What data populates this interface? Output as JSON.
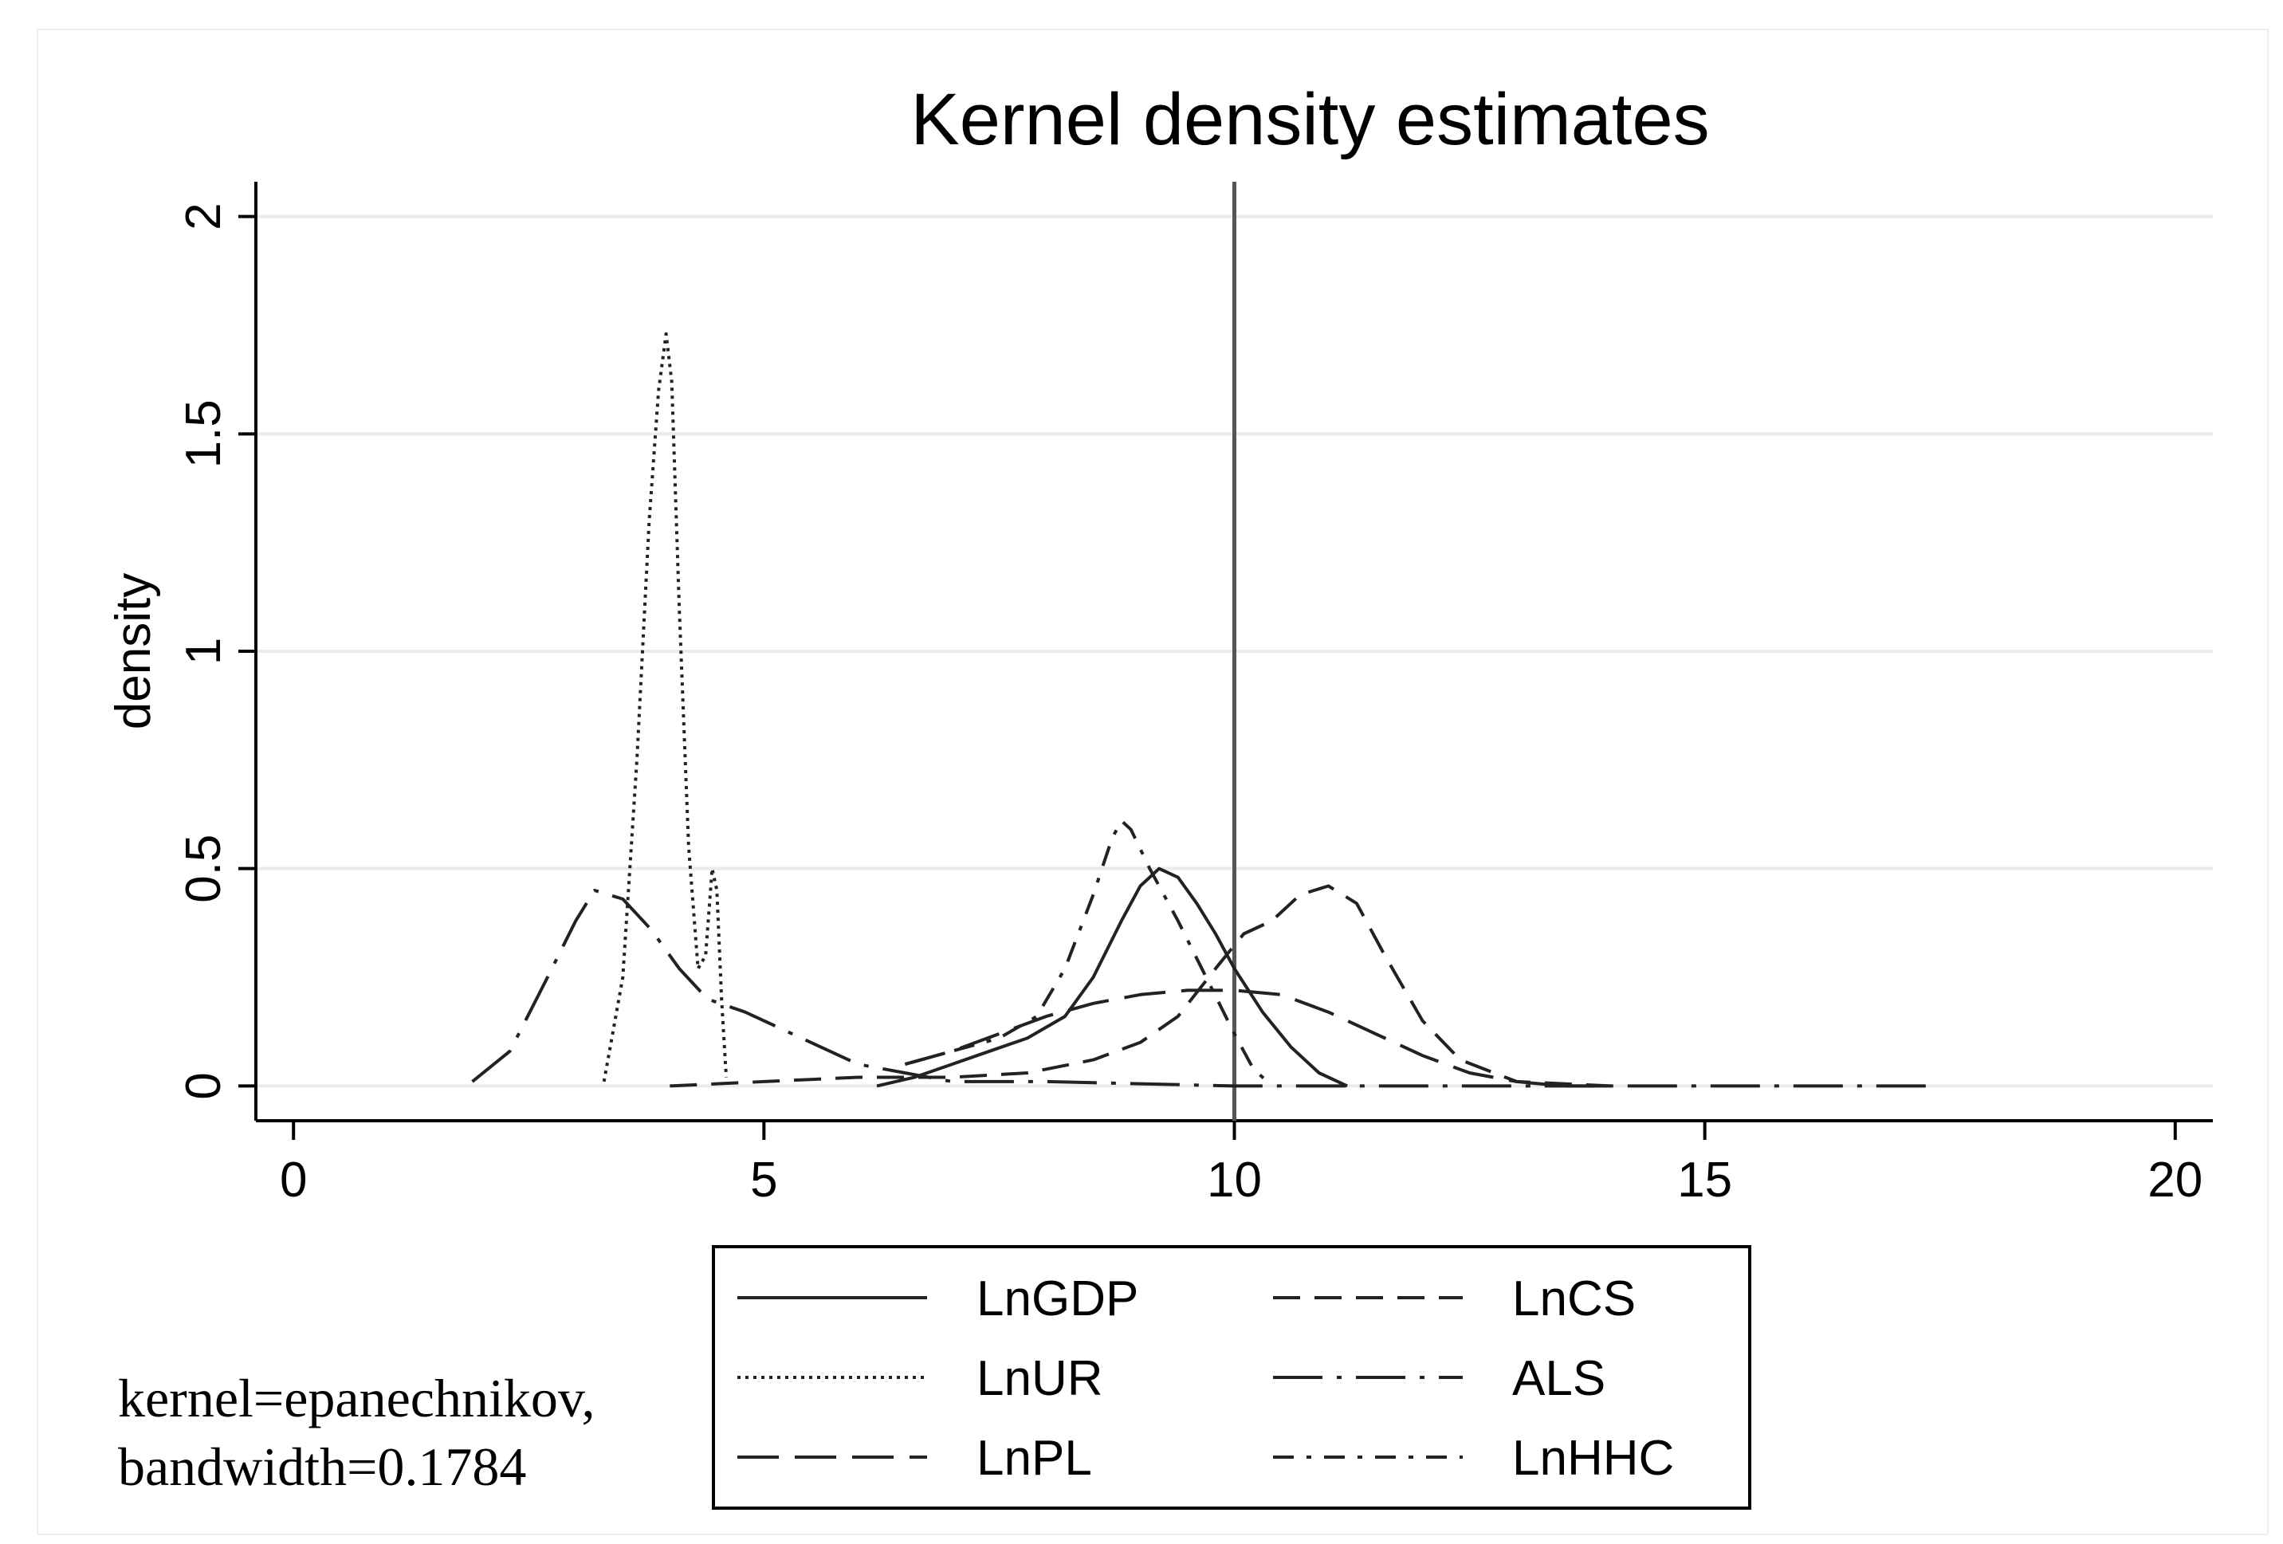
{
  "chart_data": {
    "type": "line",
    "title": "Kernel density estimates",
    "xlabel": "",
    "ylabel": "density",
    "xlim": [
      -0.4,
      20.4
    ],
    "ylim": [
      -0.08,
      2.08
    ],
    "xticks": [
      0,
      5,
      10,
      15,
      20
    ],
    "xtick_labels": [
      "0",
      "5",
      "10",
      "15",
      "20"
    ],
    "yticks": [
      0,
      0.5,
      1,
      1.5,
      2
    ],
    "ytick_labels": [
      "0",
      "0.5",
      "1",
      "1.5",
      "2"
    ],
    "grid": true,
    "reference_line_x": 10,
    "legend_position": "bottom",
    "series": [
      {
        "name": "LnGDP",
        "dash": "solid",
        "x": [
          6.2,
          6.6,
          7.0,
          7.4,
          7.8,
          8.2,
          8.5,
          8.8,
          9.0,
          9.2,
          9.4,
          9.6,
          9.8,
          10.0,
          10.3,
          10.6,
          10.9,
          11.2
        ],
        "y": [
          0.0,
          0.02,
          0.05,
          0.08,
          0.11,
          0.16,
          0.25,
          0.38,
          0.46,
          0.5,
          0.48,
          0.42,
          0.35,
          0.27,
          0.17,
          0.09,
          0.03,
          0.0
        ]
      },
      {
        "name": "LnUR",
        "dash": "dotted",
        "x": [
          3.3,
          3.5,
          3.65,
          3.78,
          3.88,
          3.96,
          4.02,
          4.1,
          4.2,
          4.3,
          4.38,
          4.45,
          4.5,
          4.55,
          4.6
        ],
        "y": [
          0.01,
          0.25,
          0.75,
          1.3,
          1.6,
          1.73,
          1.62,
          1.1,
          0.55,
          0.27,
          0.3,
          0.5,
          0.45,
          0.2,
          0.02
        ]
      },
      {
        "name": "LnPL",
        "dash": "longdash",
        "x": [
          6.5,
          7.0,
          7.5,
          8.0,
          8.5,
          9.0,
          9.5,
          10.0,
          10.5,
          11.0,
          11.5,
          12.0,
          12.5,
          13.0,
          13.5,
          14.0
        ],
        "y": [
          0.05,
          0.08,
          0.12,
          0.16,
          0.19,
          0.21,
          0.22,
          0.22,
          0.21,
          0.17,
          0.12,
          0.07,
          0.03,
          0.01,
          0.0,
          0.0
        ]
      },
      {
        "name": "LnCS",
        "dash": "dashed",
        "x": [
          4.0,
          5.0,
          6.0,
          7.0,
          7.8,
          8.5,
          9.0,
          9.4,
          9.8,
          10.1,
          10.4,
          10.7,
          11.0,
          11.3,
          11.6,
          12.0,
          12.4,
          13.0,
          14.0
        ],
        "y": [
          0.0,
          0.01,
          0.02,
          0.02,
          0.03,
          0.06,
          0.1,
          0.16,
          0.27,
          0.35,
          0.38,
          0.44,
          0.46,
          0.42,
          0.3,
          0.15,
          0.06,
          0.01,
          0.0
        ]
      },
      {
        "name": "ALS",
        "dash": "longdashdot",
        "x": [
          1.9,
          2.3,
          2.7,
          3.0,
          3.2,
          3.5,
          3.8,
          4.1,
          4.4,
          4.8,
          5.2,
          5.6,
          6.0,
          6.5,
          7.0,
          8.0,
          10.0,
          12.0,
          14.0,
          16.0,
          17.5
        ],
        "y": [
          0.01,
          0.08,
          0.25,
          0.38,
          0.45,
          0.43,
          0.36,
          0.27,
          0.2,
          0.17,
          0.13,
          0.09,
          0.05,
          0.03,
          0.01,
          0.01,
          0.0,
          0.0,
          0.0,
          0.0,
          0.0
        ]
      },
      {
        "name": "LnHHC",
        "dash": "dashdot",
        "x": [
          6.5,
          7.0,
          7.5,
          7.9,
          8.2,
          8.5,
          8.7,
          8.8,
          8.9,
          9.1,
          9.4,
          9.7,
          10.0,
          10.2,
          10.4
        ],
        "y": [
          0.05,
          0.08,
          0.11,
          0.16,
          0.27,
          0.44,
          0.57,
          0.61,
          0.59,
          0.5,
          0.38,
          0.25,
          0.12,
          0.04,
          0.0
        ]
      }
    ]
  },
  "note": {
    "line1": "kernel=epanechnikov,",
    "line2": "bandwidth=0.1784"
  }
}
